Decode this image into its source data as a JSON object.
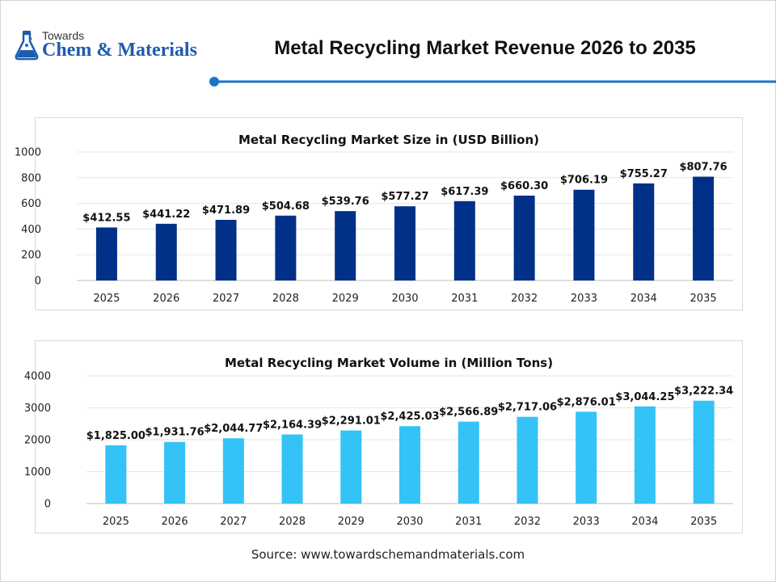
{
  "brand": {
    "name_small": "Towards",
    "name_large": "Chem & Materials",
    "icon": "flask-icon",
    "colors": {
      "primary": "#1f5bb0",
      "accent": "#1a74c9"
    }
  },
  "header": {
    "title": "Metal Recycling Market Revenue 2026 to 2035",
    "line_color": "#1a74c9"
  },
  "chart_data": [
    {
      "type": "bar",
      "title": "Metal Recycling Market Size in (USD Billion)",
      "categories": [
        "2025",
        "2026",
        "2027",
        "2028",
        "2029",
        "2030",
        "2031",
        "2032",
        "2033",
        "2034",
        "2035"
      ],
      "values": [
        412.55,
        441.22,
        471.89,
        504.68,
        539.76,
        577.27,
        617.39,
        660.3,
        706.19,
        755.27,
        807.76
      ],
      "data_labels": [
        "$412.55",
        "$441.22",
        "$471.89",
        "$504.68",
        "$539.76",
        "$577.27",
        "$617.39",
        "$660.30",
        "$706.19",
        "$755.27",
        "$807.76"
      ],
      "ylim": [
        0,
        1000
      ],
      "yticks": [
        0,
        200,
        400,
        600,
        800,
        1000
      ],
      "grid": true,
      "bar_color": "#003087"
    },
    {
      "type": "bar",
      "title": "Metal Recycling Market Volume in (Million Tons)",
      "categories": [
        "2025",
        "2026",
        "2027",
        "2028",
        "2029",
        "2030",
        "2031",
        "2032",
        "2033",
        "2034",
        "2035"
      ],
      "values": [
        1825.0,
        1931.76,
        2044.77,
        2164.39,
        2291.01,
        2425.03,
        2566.89,
        2717.06,
        2876.01,
        3044.25,
        3222.34
      ],
      "data_labels": [
        "$1,825.00",
        "$1,931.76",
        "$2,044.77",
        "$2,164.39",
        "$2,291.01",
        "$2,425.03",
        "$2,566.89",
        "$2,717.06",
        "$2,876.01",
        "$3,044.25",
        "$3,222.34"
      ],
      "ylim": [
        0,
        4000
      ],
      "yticks": [
        0,
        1000,
        2000,
        3000,
        4000
      ],
      "grid": true,
      "bar_color": "#33c3f7"
    }
  ],
  "footer": {
    "source": "Source: www.towardschemandmaterials.com"
  }
}
